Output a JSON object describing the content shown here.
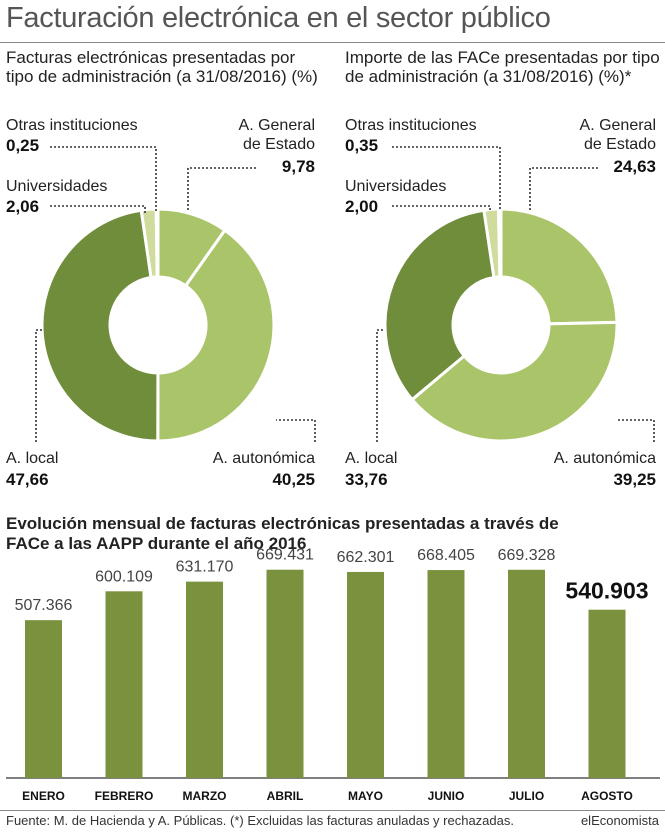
{
  "title": "Facturación electrónica en el sector público",
  "footer": {
    "source": "Fuente: M. de Hacienda y A. Públicas. (*) Excluidas las facturas anuladas y rechazadas.",
    "brand": "elEconomista"
  },
  "colors": {
    "dark_green": "#6f8d3a",
    "light_green": "#aac46a",
    "pale_green": "#cfdc9e",
    "bar": "#7a923e"
  },
  "chart_data": [
    {
      "type": "pie",
      "title": "Facturas electrónicas presentadas por tipo de administración (a 31/08/2016) (%)",
      "slices": [
        {
          "label_line1": "A. General",
          "label_line2": "de Estado",
          "value": 9.78,
          "display": "9,78",
          "color": "#aac46a"
        },
        {
          "label_line1": "A. autonómica",
          "label_line2": "",
          "value": 40.25,
          "display": "40,25",
          "color": "#aac46a"
        },
        {
          "label_line1": "A. local",
          "label_line2": "",
          "value": 47.66,
          "display": "47,66",
          "color": "#6f8d3a"
        },
        {
          "label_line1": "Universidades",
          "label_line2": "",
          "value": 2.06,
          "display": "2,06",
          "color": "#cfdc9e"
        },
        {
          "label_line1": "Otras instituciones",
          "label_line2": "",
          "value": 0.25,
          "display": "0,25",
          "color": "#aac46a"
        }
      ]
    },
    {
      "type": "pie",
      "title": "Importe de las FACe presentadas por tipo de administración (a 31/08/2016) (%)*",
      "slices": [
        {
          "label_line1": "A. General",
          "label_line2": "de Estado",
          "value": 24.63,
          "display": "24,63",
          "color": "#aac46a"
        },
        {
          "label_line1": "A. autonómica",
          "label_line2": "",
          "value": 39.25,
          "display": "39,25",
          "color": "#aac46a"
        },
        {
          "label_line1": "A. local",
          "label_line2": "",
          "value": 33.76,
          "display": "33,76",
          "color": "#6f8d3a"
        },
        {
          "label_line1": "Universidades",
          "label_line2": "",
          "value": 2.0,
          "display": "2,00",
          "color": "#cfdc9e"
        },
        {
          "label_line1": "Otras instituciones",
          "label_line2": "",
          "value": 0.35,
          "display": "0,35",
          "color": "#aac46a"
        }
      ]
    },
    {
      "type": "bar",
      "title": "Evolución mensual de facturas electrónicas presentadas a través de FACe a las AAPP durante el año 2016",
      "categories": [
        "ENERO",
        "FEBRERO",
        "MARZO",
        "ABRIL",
        "MAYO",
        "JUNIO",
        "JULIO",
        "AGOSTO"
      ],
      "values": [
        507366,
        600109,
        631170,
        669431,
        662301,
        668405,
        669328,
        540903
      ],
      "value_labels": [
        "507.366",
        "600.109",
        "631.170",
        "669.431",
        "662.301",
        "668.405",
        "669.328",
        "540.903"
      ],
      "highlight": "AGOSTO",
      "ylim": [
        0,
        900000
      ],
      "grid": false
    }
  ]
}
